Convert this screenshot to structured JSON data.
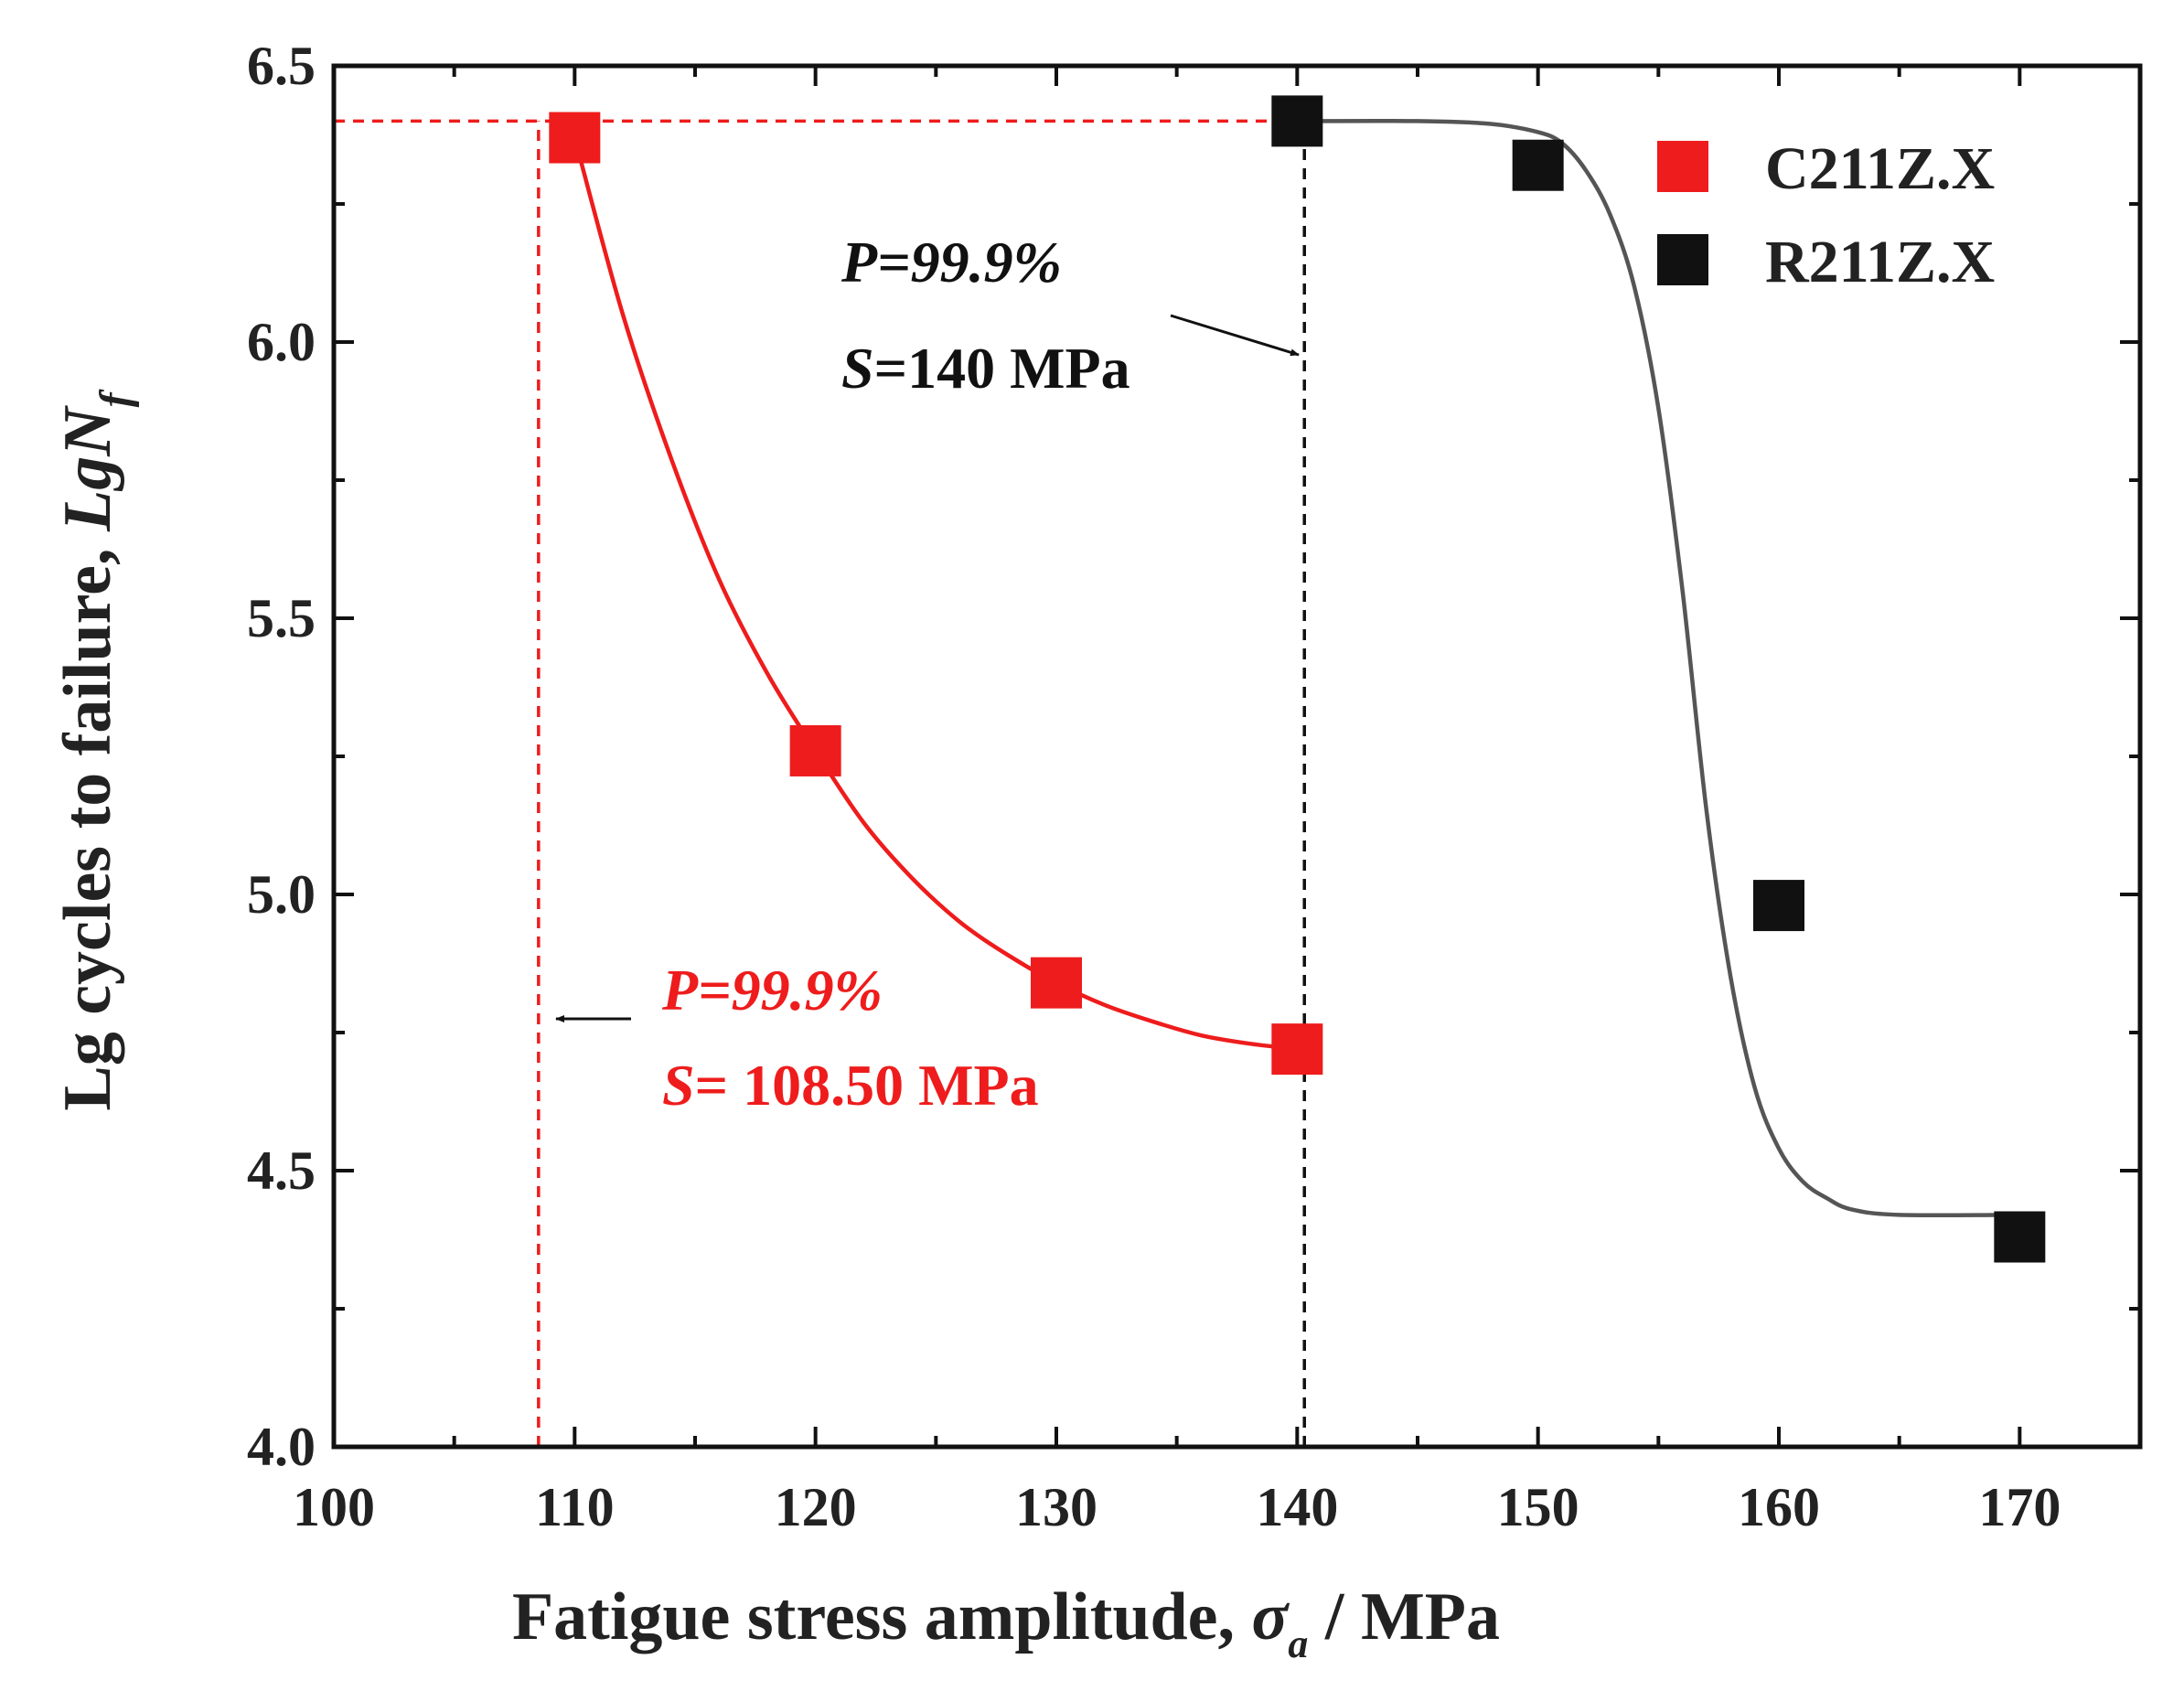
{
  "chart_data": {
    "type": "scatter",
    "title": "",
    "xlabel": {
      "main": "Fatigue stress amplitude, ",
      "symbol": "σ",
      "subscript": "a",
      "unit": " / MPa"
    },
    "ylabel": {
      "main": "Lg cycles to failure, ",
      "symbol": "LgN",
      "subscript": "f"
    },
    "xlim": [
      100,
      175
    ],
    "ylim": [
      4.0,
      6.5
    ],
    "xticks": [
      100,
      110,
      120,
      130,
      140,
      150,
      160,
      170
    ],
    "xtick_labels": [
      "100",
      "110",
      "120",
      "130",
      "140",
      "150",
      "160",
      "170"
    ],
    "yticks": [
      4.0,
      4.5,
      5.0,
      5.5,
      6.0,
      6.5
    ],
    "ytick_labels": [
      "4.0",
      "4.5",
      "5.0",
      "5.5",
      "6.0",
      "6.5"
    ],
    "legend_position": "top-right",
    "series": [
      {
        "name": "C211Z.X",
        "color": "#ee1c1c",
        "marker": "square",
        "points": [
          {
            "x": 110,
            "y": 6.37
          },
          {
            "x": 120,
            "y": 5.26
          },
          {
            "x": 130,
            "y": 4.84
          },
          {
            "x": 140,
            "y": 4.72
          }
        ],
        "fit_curve": [
          [
            110,
            6.37
          ],
          [
            112,
            6.05
          ],
          [
            114,
            5.79
          ],
          [
            116,
            5.57
          ],
          [
            118,
            5.4
          ],
          [
            120,
            5.26
          ],
          [
            122,
            5.13
          ],
          [
            124,
            5.03
          ],
          [
            126,
            4.95
          ],
          [
            128,
            4.89
          ],
          [
            130,
            4.84
          ],
          [
            132,
            4.8
          ],
          [
            134,
            4.77
          ],
          [
            136,
            4.745
          ],
          [
            138,
            4.73
          ],
          [
            140,
            4.72
          ]
        ]
      },
      {
        "name": "R211Z.X",
        "color": "#111111",
        "marker": "square",
        "points": [
          {
            "x": 140,
            "y": 6.4
          },
          {
            "x": 150,
            "y": 6.32
          },
          {
            "x": 160,
            "y": 4.98
          },
          {
            "x": 170,
            "y": 4.38
          }
        ],
        "fit_curve": [
          [
            140,
            6.4
          ],
          [
            145,
            6.4
          ],
          [
            148,
            6.395
          ],
          [
            150,
            6.38
          ],
          [
            151,
            6.36
          ],
          [
            152,
            6.31
          ],
          [
            153,
            6.23
          ],
          [
            154,
            6.1
          ],
          [
            155,
            5.88
          ],
          [
            156,
            5.55
          ],
          [
            157,
            5.15
          ],
          [
            158,
            4.85
          ],
          [
            159,
            4.65
          ],
          [
            160,
            4.54
          ],
          [
            161,
            4.48
          ],
          [
            162,
            4.45
          ],
          [
            163,
            4.43
          ],
          [
            165,
            4.42
          ],
          [
            170,
            4.42
          ]
        ]
      }
    ],
    "reference_lines": [
      {
        "name": "red-horizontal",
        "color": "#ee1c1c",
        "orientation": "horizontal",
        "y": 6.4,
        "x_from": 100,
        "x_to": 140
      },
      {
        "name": "red-vertical",
        "color": "#ee1c1c",
        "orientation": "vertical",
        "x": 108.5,
        "y_from": 4.0,
        "y_to": 6.4
      },
      {
        "name": "black-vertical",
        "color": "#111111",
        "orientation": "vertical",
        "x": 140.3,
        "y_from": 4.0,
        "y_to": 6.4
      }
    ],
    "annotations": [
      {
        "name": "r211-annotation",
        "color": "#111111",
        "p_label": "P",
        "p_value": "=99.9%",
        "s_label": "S",
        "s_value": "=140 MPa"
      },
      {
        "name": "c211-annotation",
        "color": "#ee1c1c",
        "p_label": "P",
        "p_value": "=99.9%",
        "s_label": "S",
        "s_value": "= 108.50 MPa"
      }
    ]
  }
}
